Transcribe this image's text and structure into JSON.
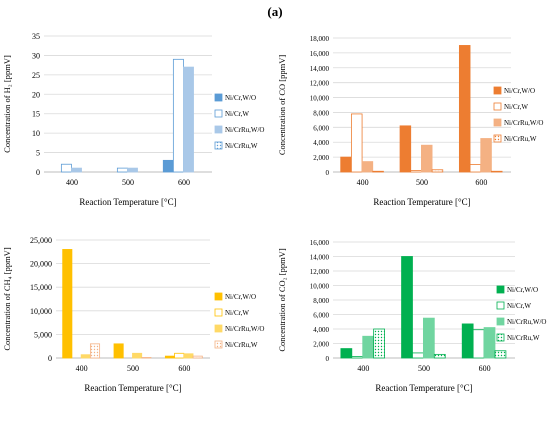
{
  "figure_label": "(a)",
  "legend_labels": [
    "Ni/Cr,W/O",
    "Ni/Cr,W",
    "Ni/CrRu,W/O",
    "Ni/CrRu,W"
  ],
  "colors": {
    "blue": [
      "#5b9bd5",
      "#5b9bd5",
      "#a9c8e8",
      "#5b9bd5"
    ],
    "orange": [
      "#ed7d31",
      "#ed7d31",
      "#f4b183",
      "#ed7d31"
    ],
    "yellow": [
      "#ffc000",
      "#ffc000",
      "#ffd966",
      "#f4b183"
    ],
    "green": [
      "#00b050",
      "#00b050",
      "#70d5a0",
      "#00b050"
    ]
  },
  "chart_data": [
    {
      "type": "bar",
      "ylabel": "Concentration of H₂ [ppmV]",
      "xlabel": "Reaction Temperature [°C]",
      "categories": [
        "400",
        "500",
        "600"
      ],
      "ylim": [
        0,
        35
      ],
      "yticks": [
        "0",
        "5",
        "10",
        "15",
        "20",
        "25",
        "30",
        "35"
      ],
      "series": [
        {
          "name": "Ni/Cr,W/O",
          "values": [
            0,
            0,
            3
          ]
        },
        {
          "name": "Ni/Cr,W",
          "values": [
            2,
            1,
            29
          ]
        },
        {
          "name": "Ni/CrRu,W/O",
          "values": [
            1,
            1,
            27
          ]
        },
        {
          "name": "Ni/CrRu,W",
          "values": [
            0,
            0,
            0
          ]
        }
      ]
    },
    {
      "type": "bar",
      "ylabel": "Concentration of CO [ppmV]",
      "xlabel": "Reaction Temperature [°C]",
      "categories": [
        "400",
        "500",
        "600"
      ],
      "ylim": [
        0,
        18000
      ],
      "yticks": [
        "0",
        "2,000",
        "4,000",
        "6,000",
        "8,000",
        "10,000",
        "12,000",
        "14,000",
        "16,000",
        "18,000"
      ],
      "series": [
        {
          "name": "Ni/Cr,W/O",
          "values": [
            2000,
            6200,
            17000
          ]
        },
        {
          "name": "Ni/Cr,W",
          "values": [
            7800,
            200,
            1000
          ]
        },
        {
          "name": "Ni/CrRu,W/O",
          "values": [
            1400,
            3600,
            4500
          ]
        },
        {
          "name": "Ni/CrRu,W",
          "values": [
            100,
            300,
            100
          ]
        }
      ]
    },
    {
      "type": "bar",
      "ylabel": "Concentration of CH₄ [ppmV]",
      "xlabel": "Reaction Temperature [°C]",
      "categories": [
        "400",
        "500",
        "600"
      ],
      "ylim": [
        0,
        25000
      ],
      "yticks": [
        "0",
        "5,000",
        "10,000",
        "15,000",
        "20,000",
        "25,000"
      ],
      "series": [
        {
          "name": "Ni/Cr,W/O",
          "values": [
            23000,
            3000,
            400
          ]
        },
        {
          "name": "Ni/Cr,W",
          "values": [
            0,
            0,
            1000
          ]
        },
        {
          "name": "Ni/CrRu,W/O",
          "values": [
            700,
            1000,
            900
          ]
        },
        {
          "name": "Ni/CrRu,W",
          "values": [
            3000,
            100,
            400
          ]
        }
      ]
    },
    {
      "type": "bar",
      "ylabel": "Concentration of CO₂ [ppmV]",
      "xlabel": "Reaction Temperature [°C]",
      "categories": [
        "400",
        "500",
        "600"
      ],
      "ylim": [
        0,
        16000
      ],
      "yticks": [
        "0",
        "2,000",
        "4,000",
        "6,000",
        "8,000",
        "10,000",
        "12,000",
        "14,000",
        "16,000"
      ],
      "series": [
        {
          "name": "Ni/Cr,W/O",
          "values": [
            1300,
            14000,
            4700
          ]
        },
        {
          "name": "Ni/Cr,W",
          "values": [
            200,
            700,
            3900
          ]
        },
        {
          "name": "Ni/CrRu,W/O",
          "values": [
            3000,
            5500,
            4200
          ]
        },
        {
          "name": "Ni/CrRu,W",
          "values": [
            4000,
            500,
            1000
          ]
        }
      ]
    }
  ]
}
